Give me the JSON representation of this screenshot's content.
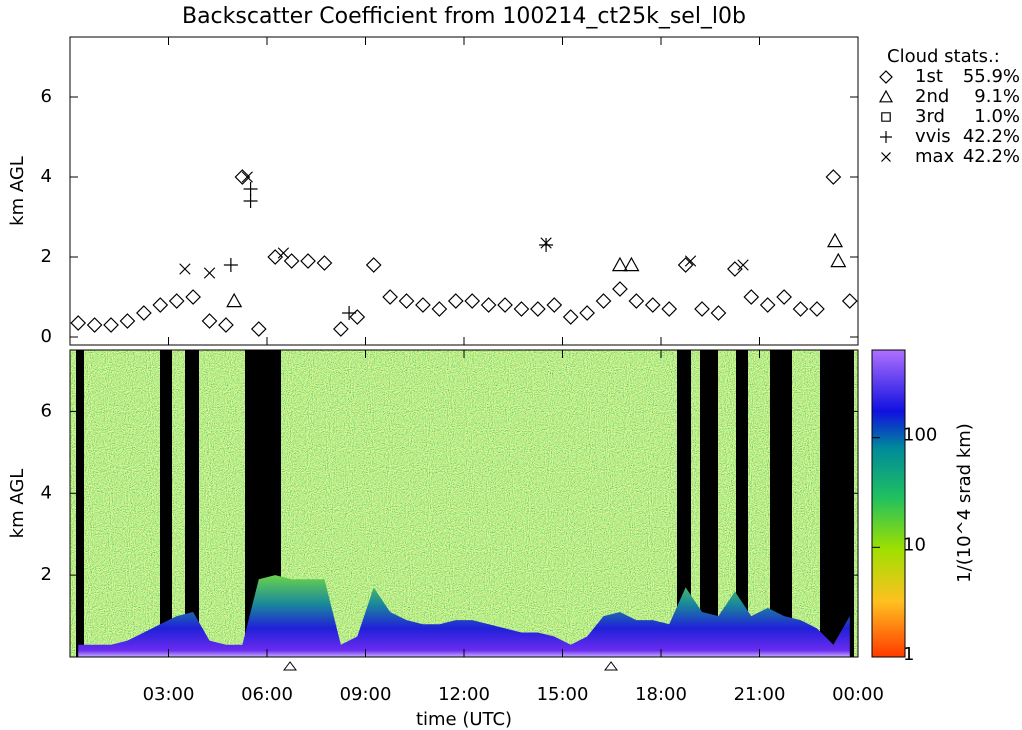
{
  "chart_data": [
    {
      "type": "scatter",
      "title": "Backscatter Coefficient from 100214_ct25k_sel_l0b",
      "y_label": "km AGL",
      "legend_title": "Cloud stats.:",
      "xlim": [
        0,
        24
      ],
      "xticks": [
        3,
        6,
        9,
        12,
        15,
        18,
        21,
        24
      ],
      "ylim": [
        -0.2,
        7.5
      ],
      "yticks": [
        0,
        2,
        4,
        6
      ],
      "series": [
        {
          "name": "1st",
          "value_label": "55.9%",
          "symbol": "diamond",
          "color": "#000000",
          "x": [
            0.25,
            0.75,
            1.25,
            1.75,
            2.25,
            2.75,
            3.25,
            3.75,
            4.25,
            4.75,
            5.25,
            5.75,
            6.25,
            6.75,
            7.25,
            7.75,
            8.25,
            8.75,
            9.25,
            9.75,
            10.25,
            10.75,
            11.25,
            11.75,
            12.25,
            12.75,
            13.25,
            13.75,
            14.25,
            14.75,
            15.25,
            15.75,
            16.25,
            16.75,
            17.25,
            17.75,
            18.25,
            18.75,
            19.25,
            19.75,
            20.25,
            20.75,
            21.25,
            21.75,
            22.25,
            22.75,
            23.25,
            23.75
          ],
          "values": [
            0.35,
            0.3,
            0.3,
            0.4,
            0.6,
            0.8,
            0.9,
            1.0,
            0.4,
            0.3,
            4.0,
            0.2,
            2.0,
            1.9,
            1.9,
            1.85,
            0.2,
            0.5,
            1.8,
            1.0,
            0.9,
            0.8,
            0.7,
            0.9,
            0.9,
            0.8,
            0.8,
            0.7,
            0.7,
            0.8,
            0.5,
            0.6,
            0.9,
            1.2,
            0.9,
            0.8,
            0.7,
            1.8,
            0.7,
            0.6,
            1.7,
            1.0,
            0.8,
            1.0,
            0.7,
            0.7,
            4.0,
            0.9
          ]
        },
        {
          "name": "2nd",
          "value_label": "9.1%",
          "symbol": "triangle",
          "color": "#000000",
          "x": [
            5.0,
            16.75,
            17.1,
            23.3,
            23.4
          ],
          "values": [
            0.9,
            1.8,
            1.8,
            2.4,
            1.9
          ]
        },
        {
          "name": "3rd",
          "value_label": "1.0%",
          "symbol": "square",
          "color": "#000000",
          "x": [],
          "values": []
        },
        {
          "name": "vvis",
          "value_label": "42.2%",
          "symbol": "plus",
          "color": "#000000",
          "x": [
            5.5,
            5.5,
            14.5,
            8.5,
            4.9
          ],
          "values": [
            3.4,
            3.7,
            2.3,
            0.6,
            1.8
          ]
        },
        {
          "name": "max",
          "value_label": "42.2%",
          "symbol": "cross",
          "color": "#000000",
          "x": [
            3.5,
            4.25,
            5.4,
            6.5,
            14.5,
            18.9,
            20.5
          ],
          "values": [
            1.7,
            1.6,
            4.0,
            2.1,
            2.35,
            1.9,
            1.8
          ]
        }
      ]
    },
    {
      "type": "image",
      "x_label": "time (UTC)",
      "y_label": "km AGL",
      "xlim": [
        0,
        24
      ],
      "xticks": [
        {
          "value": 3,
          "label": "03:00"
        },
        {
          "value": 6,
          "label": "06:00"
        },
        {
          "value": 9,
          "label": "09:00"
        },
        {
          "value": 12,
          "label": "12:00"
        },
        {
          "value": 15,
          "label": "15:00"
        },
        {
          "value": 18,
          "label": "18:00"
        },
        {
          "value": 21,
          "label": "21:00"
        },
        {
          "value": 24,
          "label": "00:00"
        }
      ],
      "ylim": [
        0,
        7.5
      ],
      "yticks": [
        2,
        4,
        6
      ],
      "x": [
        0.25,
        0.75,
        1.25,
        1.75,
        2.25,
        2.75,
        3.25,
        3.75,
        4.25,
        4.75,
        5.25,
        5.75,
        6.25,
        6.75,
        7.25,
        7.75,
        8.25,
        8.75,
        9.25,
        9.75,
        10.25,
        10.75,
        11.25,
        11.75,
        12.25,
        12.75,
        13.25,
        13.75,
        14.25,
        14.75,
        15.25,
        15.75,
        16.25,
        16.75,
        17.25,
        17.75,
        18.25,
        18.75,
        19.25,
        19.75,
        20.25,
        20.75,
        21.25,
        21.75,
        22.25,
        22.75,
        23.25,
        23.75
      ],
      "layer_top": [
        0.3,
        0.3,
        0.3,
        0.4,
        0.6,
        0.8,
        1.0,
        1.1,
        0.4,
        0.3,
        0.3,
        1.9,
        2.0,
        1.9,
        1.9,
        1.9,
        0.3,
        0.5,
        1.7,
        1.1,
        0.9,
        0.8,
        0.8,
        0.9,
        0.9,
        0.8,
        0.7,
        0.6,
        0.6,
        0.5,
        0.3,
        0.5,
        1.0,
        1.1,
        0.9,
        0.9,
        0.8,
        1.7,
        1.1,
        1.0,
        1.6,
        1.0,
        1.2,
        1.0,
        0.9,
        0.7,
        0.3,
        1.0
      ],
      "colorbar": {
        "label": "1/(10^4 srad km)",
        "log": true,
        "lim": [
          1,
          630
        ],
        "ticks": [
          1,
          10,
          100
        ]
      }
    }
  ]
}
